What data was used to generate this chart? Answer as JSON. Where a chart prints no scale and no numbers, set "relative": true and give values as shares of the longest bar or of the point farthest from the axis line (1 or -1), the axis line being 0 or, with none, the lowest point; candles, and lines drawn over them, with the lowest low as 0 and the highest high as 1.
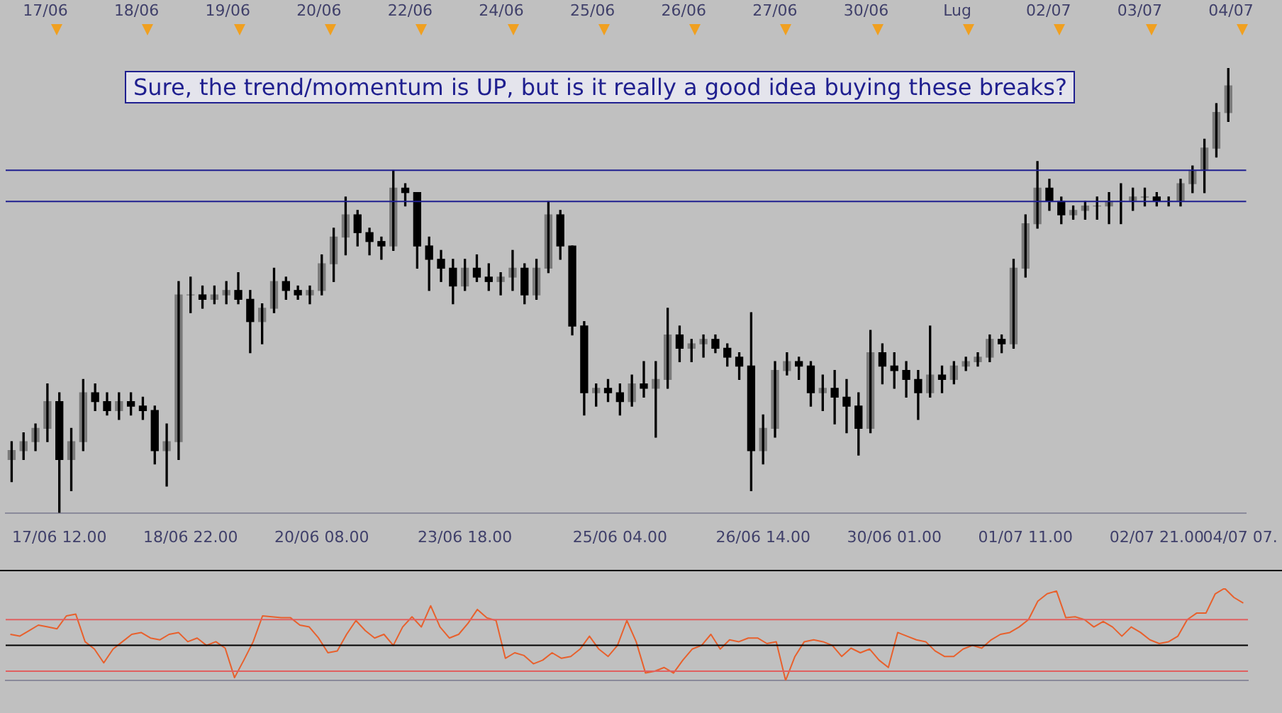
{
  "chart_data": [
    {
      "type": "candlestick",
      "relative": true,
      "tick_labels": "x",
      "annotations": [
        "17/06",
        "18/06",
        "19/06",
        "20/06",
        "22/06",
        "24/06",
        "25/06",
        "26/06",
        "27/06",
        "30/06",
        "Lug",
        "02/07",
        "03/07",
        "04/07",
        "Sure, the trend/momentum is UP, but is it really a good idea buying these breaks?"
      ],
      "categories": [
        null,
        null,
        null,
        null,
        "17/06 12.00",
        null,
        null,
        null,
        null,
        null,
        null,
        null,
        null,
        null,
        null,
        "18/06 22.00",
        null,
        null,
        null,
        null,
        null,
        null,
        null,
        null,
        null,
        null,
        "20/06 08.00",
        null,
        null,
        null,
        null,
        null,
        null,
        null,
        null,
        null,
        null,
        null,
        "23/06 18.00",
        null,
        null,
        null,
        null,
        null,
        null,
        null,
        null,
        null,
        null,
        null,
        null,
        "25/06 04.00",
        null,
        null,
        null,
        null,
        null,
        null,
        null,
        null,
        null,
        null,
        null,
        "26/06 14.00",
        null,
        null,
        null,
        null,
        null,
        null,
        null,
        null,
        null,
        null,
        "30/06 01.00",
        null,
        null,
        null,
        null,
        null,
        null,
        null,
        null,
        null,
        null,
        "01/07 11.00",
        null,
        null,
        null,
        null,
        null,
        null,
        null,
        null,
        null,
        null,
        "02/07 21.00",
        null,
        null,
        null,
        null,
        null,
        null,
        "04/07 07."
      ],
      "ohlc": [
        [
          0.12,
          0.16,
          0.07,
          0.14
        ],
        [
          0.14,
          0.18,
          0.12,
          0.16
        ],
        [
          0.16,
          0.2,
          0.14,
          0.19
        ],
        [
          0.19,
          0.29,
          0.16,
          0.25
        ],
        [
          0.25,
          0.27,
          0.0,
          0.12
        ],
        [
          0.12,
          0.19,
          0.05,
          0.16
        ],
        [
          0.16,
          0.3,
          0.14,
          0.27
        ],
        [
          0.27,
          0.29,
          0.23,
          0.25
        ],
        [
          0.25,
          0.27,
          0.22,
          0.23
        ],
        [
          0.23,
          0.27,
          0.21,
          0.25
        ],
        [
          0.25,
          0.27,
          0.22,
          0.24
        ],
        [
          0.24,
          0.26,
          0.21,
          0.23
        ],
        [
          0.23,
          0.24,
          0.11,
          0.14
        ],
        [
          0.14,
          0.2,
          0.06,
          0.16
        ],
        [
          0.16,
          0.52,
          0.12,
          0.49
        ],
        [
          0.49,
          0.53,
          0.45,
          0.49
        ],
        [
          0.49,
          0.51,
          0.46,
          0.48
        ],
        [
          0.48,
          0.51,
          0.47,
          0.49
        ],
        [
          0.49,
          0.52,
          0.47,
          0.5
        ],
        [
          0.5,
          0.54,
          0.47,
          0.48
        ],
        [
          0.48,
          0.5,
          0.36,
          0.43
        ],
        [
          0.43,
          0.47,
          0.38,
          0.46
        ],
        [
          0.46,
          0.55,
          0.45,
          0.52
        ],
        [
          0.52,
          0.53,
          0.48,
          0.5
        ],
        [
          0.5,
          0.51,
          0.48,
          0.49
        ],
        [
          0.49,
          0.51,
          0.47,
          0.5
        ],
        [
          0.5,
          0.58,
          0.49,
          0.56
        ],
        [
          0.56,
          0.64,
          0.52,
          0.62
        ],
        [
          0.62,
          0.71,
          0.58,
          0.67
        ],
        [
          0.67,
          0.68,
          0.6,
          0.63
        ],
        [
          0.63,
          0.64,
          0.58,
          0.61
        ],
        [
          0.61,
          0.62,
          0.57,
          0.6
        ],
        [
          0.6,
          0.77,
          0.59,
          0.73
        ],
        [
          0.73,
          0.74,
          0.69,
          0.72
        ],
        [
          0.72,
          0.72,
          0.55,
          0.6
        ],
        [
          0.6,
          0.62,
          0.5,
          0.57
        ],
        [
          0.57,
          0.59,
          0.52,
          0.55
        ],
        [
          0.55,
          0.57,
          0.47,
          0.51
        ],
        [
          0.51,
          0.57,
          0.5,
          0.55
        ],
        [
          0.55,
          0.58,
          0.52,
          0.53
        ],
        [
          0.53,
          0.56,
          0.5,
          0.52
        ],
        [
          0.52,
          0.54,
          0.49,
          0.53
        ],
        [
          0.53,
          0.59,
          0.5,
          0.55
        ],
        [
          0.55,
          0.56,
          0.47,
          0.49
        ],
        [
          0.49,
          0.57,
          0.48,
          0.55
        ],
        [
          0.55,
          0.7,
          0.54,
          0.67
        ],
        [
          0.67,
          0.68,
          0.57,
          0.6
        ],
        [
          0.6,
          0.6,
          0.4,
          0.42
        ],
        [
          0.42,
          0.43,
          0.22,
          0.27
        ],
        [
          0.27,
          0.29,
          0.24,
          0.28
        ],
        [
          0.28,
          0.3,
          0.25,
          0.27
        ],
        [
          0.27,
          0.29,
          0.22,
          0.25
        ],
        [
          0.25,
          0.31,
          0.24,
          0.29
        ],
        [
          0.29,
          0.34,
          0.26,
          0.28
        ],
        [
          0.28,
          0.34,
          0.17,
          0.3
        ],
        [
          0.3,
          0.46,
          0.28,
          0.4
        ],
        [
          0.4,
          0.42,
          0.34,
          0.37
        ],
        [
          0.37,
          0.39,
          0.34,
          0.38
        ],
        [
          0.38,
          0.4,
          0.35,
          0.39
        ],
        [
          0.39,
          0.4,
          0.36,
          0.37
        ],
        [
          0.37,
          0.38,
          0.33,
          0.35
        ],
        [
          0.35,
          0.36,
          0.3,
          0.33
        ],
        [
          0.33,
          0.45,
          0.05,
          0.14
        ],
        [
          0.14,
          0.22,
          0.11,
          0.19
        ],
        [
          0.19,
          0.34,
          0.17,
          0.32
        ],
        [
          0.32,
          0.36,
          0.31,
          0.34
        ],
        [
          0.34,
          0.35,
          0.3,
          0.33
        ],
        [
          0.33,
          0.34,
          0.24,
          0.27
        ],
        [
          0.27,
          0.31,
          0.23,
          0.28
        ],
        [
          0.28,
          0.32,
          0.2,
          0.26
        ],
        [
          0.26,
          0.3,
          0.18,
          0.24
        ],
        [
          0.24,
          0.27,
          0.13,
          0.19
        ],
        [
          0.19,
          0.41,
          0.18,
          0.36
        ],
        [
          0.36,
          0.38,
          0.29,
          0.33
        ],
        [
          0.33,
          0.36,
          0.28,
          0.32
        ],
        [
          0.32,
          0.34,
          0.26,
          0.3
        ],
        [
          0.3,
          0.32,
          0.21,
          0.27
        ],
        [
          0.27,
          0.42,
          0.26,
          0.31
        ],
        [
          0.31,
          0.33,
          0.27,
          0.3
        ],
        [
          0.3,
          0.34,
          0.29,
          0.33
        ],
        [
          0.33,
          0.35,
          0.32,
          0.34
        ],
        [
          0.34,
          0.36,
          0.33,
          0.35
        ],
        [
          0.35,
          0.4,
          0.34,
          0.39
        ],
        [
          0.39,
          0.4,
          0.36,
          0.38
        ],
        [
          0.38,
          0.57,
          0.37,
          0.55
        ],
        [
          0.55,
          0.67,
          0.53,
          0.65
        ],
        [
          0.65,
          0.79,
          0.64,
          0.73
        ],
        [
          0.73,
          0.75,
          0.68,
          0.7
        ],
        [
          0.7,
          0.71,
          0.65,
          0.67
        ],
        [
          0.67,
          0.69,
          0.66,
          0.68
        ],
        [
          0.68,
          0.7,
          0.66,
          0.69
        ],
        [
          0.69,
          0.71,
          0.66,
          0.69
        ],
        [
          0.69,
          0.72,
          0.65,
          0.7
        ],
        [
          0.7,
          0.74,
          0.65,
          0.7
        ],
        [
          0.7,
          0.73,
          0.68,
          0.71
        ],
        [
          0.71,
          0.73,
          0.69,
          0.71
        ],
        [
          0.71,
          0.72,
          0.69,
          0.7
        ],
        [
          0.7,
          0.71,
          0.69,
          0.7
        ],
        [
          0.7,
          0.75,
          0.69,
          0.74
        ],
        [
          0.74,
          0.78,
          0.72,
          0.77
        ],
        [
          0.77,
          0.84,
          0.72,
          0.82
        ],
        [
          0.82,
          0.92,
          0.8,
          0.9
        ],
        [
          0.9,
          1.0,
          0.88,
          0.96
        ],
        null
      ],
      "ref_lines": [
        {
          "axis": "y",
          "value": 0.77,
          "color": "#1f1f8f"
        },
        {
          "axis": "y",
          "value": 0.7,
          "color": "#1f1f8f"
        }
      ]
    },
    {
      "type": "line",
      "relative": true,
      "categories": [
        null,
        null,
        null,
        null,
        null,
        null,
        null,
        null,
        null,
        null,
        null,
        null,
        null,
        null,
        null,
        null,
        null,
        null,
        null,
        null,
        null,
        null,
        null,
        null,
        null,
        null,
        null,
        null,
        null,
        null,
        null,
        null,
        null,
        null,
        null,
        null,
        null,
        null,
        null,
        null,
        null,
        null,
        null,
        null,
        null,
        null,
        null,
        null,
        null,
        null,
        null,
        null,
        null,
        null,
        null,
        null,
        null,
        null,
        null,
        null,
        null,
        null,
        null,
        null,
        null,
        null,
        null,
        null,
        null,
        null,
        null,
        null,
        null,
        null,
        null,
        null,
        null,
        null,
        null,
        null,
        null,
        null,
        null,
        null,
        null,
        null,
        null,
        null,
        null,
        null,
        null,
        null,
        null,
        null,
        null,
        null,
        null,
        null,
        null,
        null,
        null,
        null,
        null,
        null,
        null,
        null,
        null,
        null,
        null,
        null,
        null,
        null,
        null,
        null,
        null,
        null,
        null,
        null,
        null,
        null,
        null,
        null,
        null,
        null,
        null,
        null,
        null,
        null,
        null,
        null,
        null,
        null,
        null
      ],
      "series": [
        {
          "color": "#e8602c",
          "values": [
            0.5,
            0.48,
            0.54,
            0.6,
            0.58,
            0.56,
            0.7,
            0.72,
            0.42,
            0.34,
            0.19,
            0.34,
            0.42,
            0.5,
            0.52,
            0.46,
            0.44,
            0.5,
            0.52,
            0.42,
            0.46,
            0.38,
            0.42,
            0.35,
            0.03,
            0.22,
            0.42,
            0.7,
            0.69,
            0.68,
            0.68,
            0.6,
            0.58,
            0.46,
            0.3,
            0.32,
            0.5,
            0.65,
            0.54,
            0.46,
            0.5,
            0.38,
            0.58,
            0.69,
            0.58,
            0.81,
            0.58,
            0.46,
            0.5,
            0.62,
            0.77,
            0.68,
            0.65,
            0.24,
            0.3,
            0.27,
            0.18,
            0.22,
            0.3,
            0.24,
            0.26,
            0.34,
            0.48,
            0.34,
            0.26,
            0.38,
            0.65,
            0.42,
            0.08,
            0.1,
            0.14,
            0.08,
            0.22,
            0.34,
            0.38,
            0.5,
            0.34,
            0.44,
            0.42,
            0.46,
            0.46,
            0.4,
            0.42,
            0,
            0.26,
            0.42,
            0.44,
            0.42,
            0.38,
            0.26,
            0.35,
            0.3,
            0.34,
            0.22,
            0.14,
            0.52,
            0.48,
            0.44,
            0.42,
            0.32,
            0.26,
            0.26,
            0.34,
            0.38,
            0.35,
            0.44,
            0.5,
            0.52,
            0.58,
            0.66,
            0.86,
            0.94,
            0.97,
            0.68,
            0.69,
            0.66,
            0.58,
            0.64,
            0.58,
            0.48,
            0.58,
            0.52,
            0.44,
            0.4,
            0.42,
            0.48,
            0.66,
            0.73,
            0.73,
            0.94,
            1,
            0.9,
            0.84
          ]
        }
      ],
      "ref_lines": [
        {
          "axis": "y",
          "value": 0.66,
          "color": "#e06060"
        },
        {
          "axis": "y",
          "value": 0.38,
          "color": "#000000"
        },
        {
          "axis": "y",
          "value": 0.1,
          "color": "#e06060"
        }
      ]
    }
  ]
}
